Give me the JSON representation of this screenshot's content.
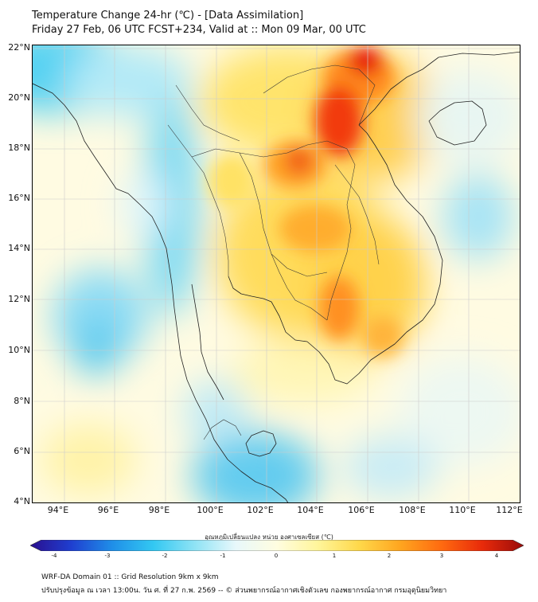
{
  "title_line1": "Temperature Change 24-hr (℃) - [Data Assimilation]",
  "title_line2": "Friday 27 Feb, 06 UTC FCST+234, Valid at :: Mon 09 Mar, 00 UTC",
  "lat_labels": [
    "22°N",
    "20°N",
    "18°N",
    "16°N",
    "14°N",
    "12°N",
    "10°N",
    "8°N",
    "6°N",
    "4°N"
  ],
  "lon_labels": [
    "94°E",
    "96°E",
    "98°E",
    "100°E",
    "102°E",
    "104°E",
    "106°E",
    "108°E",
    "110°E",
    "112°E"
  ],
  "colorbar": {
    "label": "อุณหภูมิเปลี่ยนแปลง หน่วย องศาเซลเซียส (℃)",
    "ticks": [
      "-4",
      "-3",
      "-2",
      "-1",
      "0",
      "1",
      "2",
      "3",
      "4"
    ],
    "colors": [
      "#2a0f8f",
      "#1f3fd0",
      "#1f8fe8",
      "#33c8f2",
      "#8fe3f5",
      "#e8f8fb",
      "#fffde0",
      "#fff59a",
      "#ffd84a",
      "#ffa51f",
      "#ff6a10",
      "#e82a0a",
      "#9a0c0a"
    ]
  },
  "footer_line1": "WRF-DA Domain 01 :: Grid Resolution 9km x 9km",
  "footer_line2": "ปรับปรุงข้อมูล ณ เวลา 13:00น. วัน ศ. ที่ 27 ก.พ. 2569 -- © ส่วนพยากรณ์อากาศเชิงตัวเลข กองพยากรณ์อากาศ กรมอุตุนิยมวิทยา"
}
